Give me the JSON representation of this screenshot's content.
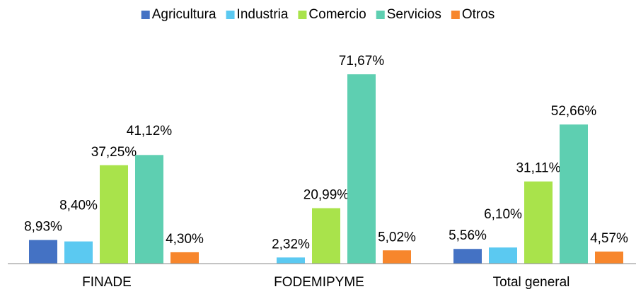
{
  "chart_data": {
    "type": "bar",
    "categories": [
      "FINADE",
      "FODEMIPYME",
      "Total general"
    ],
    "series": [
      {
        "name": "Agricultura",
        "color": "#4472c4",
        "values": [
          8.93,
          null,
          5.56
        ],
        "value_labels": [
          "8,93%",
          null,
          "5,56%"
        ]
      },
      {
        "name": "Industria",
        "color": "#5bc9f1",
        "values": [
          8.4,
          2.32,
          6.1
        ],
        "value_labels": [
          "8,40%",
          "2,32%",
          "6,10%"
        ]
      },
      {
        "name": "Comercio",
        "color": "#a9e34b",
        "values": [
          37.25,
          20.99,
          31.11
        ],
        "value_labels": [
          "37,25%",
          "20,99%",
          "31,11%"
        ]
      },
      {
        "name": "Servicios",
        "color": "#5ecfb1",
        "values": [
          41.12,
          71.67,
          52.66
        ],
        "value_labels": [
          "41,12%",
          "71,67%",
          "52,66%"
        ]
      },
      {
        "name": "Otros",
        "color": "#f7862c",
        "values": [
          4.3,
          5.02,
          4.57
        ],
        "value_labels": [
          "4,30%",
          "5,02%",
          "4,57%"
        ]
      }
    ],
    "ylim": [
      0,
      80
    ],
    "legend": "top"
  }
}
